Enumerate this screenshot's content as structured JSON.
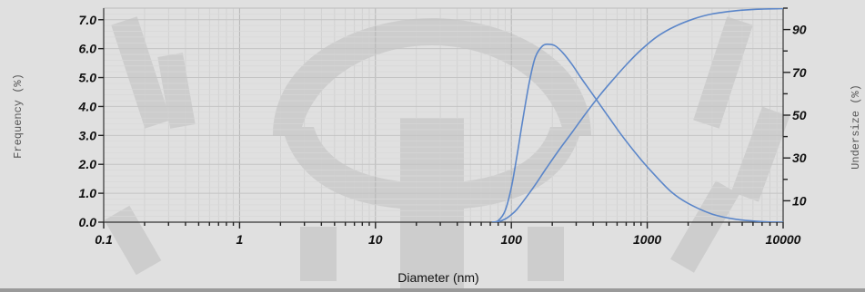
{
  "chart_data": {
    "type": "line",
    "xlabel": "Diameter (nm)",
    "ylabel_left": "Frequency (%)",
    "ylabel_right": "Undersize (%)",
    "xscale": "log",
    "xlim": [
      0.1,
      10000
    ],
    "ylim_left": [
      0,
      7.4
    ],
    "ylim_right": [
      0,
      100
    ],
    "x_ticks": [
      "0.1",
      "1",
      "10",
      "100",
      "1000",
      "10000"
    ],
    "y_left_ticks": [
      "0.0",
      "1.0",
      "2.0",
      "3.0",
      "4.0",
      "5.0",
      "6.0",
      "7.0"
    ],
    "y_right_ticks": [
      "10",
      "30",
      "50",
      "70",
      "90"
    ],
    "grid": true,
    "series": [
      {
        "axis": "left",
        "color": "#5b86c9",
        "x": [
          72,
          80,
          90,
          100,
          110,
          120,
          135,
          150,
          170,
          190,
          210,
          240,
          280,
          330,
          400,
          500,
          650,
          850,
          1100,
          1500,
          2000,
          3000,
          4500,
          7000,
          10000
        ],
        "y": [
          0,
          0.05,
          0.4,
          1.2,
          2.3,
          3.4,
          4.8,
          5.7,
          6.1,
          6.15,
          6.1,
          5.85,
          5.45,
          4.95,
          4.4,
          3.75,
          3.0,
          2.3,
          1.7,
          1.05,
          0.65,
          0.28,
          0.1,
          0.02,
          0
        ]
      },
      {
        "axis": "right",
        "color": "#5b86c9",
        "x": [
          72,
          80,
          90,
          100,
          110,
          130,
          150,
          180,
          220,
          280,
          350,
          450,
          550,
          700,
          900,
          1200,
          1600,
          2200,
          3000,
          4500,
          6500,
          10000
        ],
        "y": [
          0,
          0.2,
          1.5,
          3.5,
          6,
          12,
          17.5,
          25,
          33,
          42,
          50.5,
          59.5,
          66,
          73.5,
          80.5,
          87,
          91.5,
          95,
          97.3,
          98.8,
          99.5,
          99.8
        ]
      }
    ]
  }
}
